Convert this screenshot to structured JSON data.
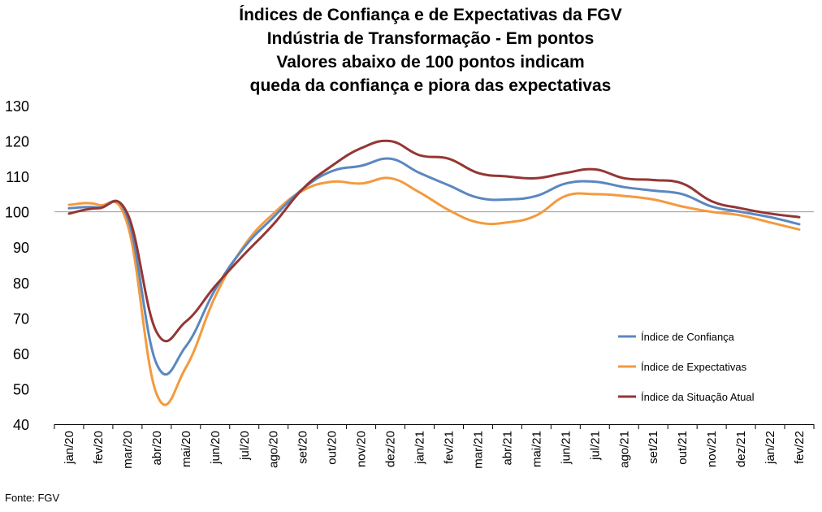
{
  "title": [
    "Índices de Confiança e de Expectativas da FGV",
    "Indústria de Transformação - Em pontos",
    "Valores abaixo de 100 pontos indicam",
    "queda da confiança e piora das expectativas"
  ],
  "source": "Fonte: FGV",
  "colors": {
    "confianca": "#5B87C0",
    "expectativas": "#F39A3E",
    "situacao": "#943634",
    "reference_line": "#9a9a9a",
    "axis": "#000000"
  },
  "chart_data": {
    "type": "line",
    "categories": [
      "jan/20",
      "fev/20",
      "mar/20",
      "abr/20",
      "mai/20",
      "jun/20",
      "jul/20",
      "ago/20",
      "set/20",
      "out/20",
      "nov/20",
      "dez/20",
      "jan/21",
      "fev/21",
      "mar/21",
      "abr/21",
      "mai/21",
      "jun/21",
      "jul/21",
      "ago/21",
      "set/21",
      "out/21",
      "nov/21",
      "dez/21",
      "jan/22",
      "fev/22"
    ],
    "ylim": [
      40,
      130
    ],
    "yticks": [
      40,
      50,
      60,
      70,
      80,
      90,
      100,
      110,
      120,
      130
    ],
    "reference_y": 100,
    "grid": false,
    "legend_position": "right",
    "series": [
      {
        "name": "Índice de Confiança",
        "color_key": "confianca",
        "values": [
          101,
          101.2,
          98.5,
          57,
          62,
          78,
          90,
          98.5,
          106.5,
          111.5,
          113,
          115,
          111,
          107.5,
          104,
          103.5,
          104.5,
          108,
          108.5,
          107,
          106,
          105,
          101.5,
          100,
          98.5,
          96.5
        ]
      },
      {
        "name": "Índice de Expectativas",
        "color_key": "expectativas",
        "values": [
          102,
          102,
          96.5,
          48.5,
          56,
          76,
          90.5,
          99.5,
          106,
          108.5,
          108,
          109.5,
          105.5,
          100.5,
          97,
          97,
          99,
          104.5,
          105,
          104.5,
          103.5,
          101.5,
          100,
          99,
          97,
          95
        ]
      },
      {
        "name": "Índice da Situação Atual",
        "color_key": "situacao",
        "values": [
          99.5,
          101,
          99.5,
          66,
          69,
          79,
          88,
          96.5,
          106.5,
          113,
          118,
          120,
          116,
          115,
          111,
          110,
          109.5,
          111,
          112,
          109.5,
          109,
          108,
          103,
          101,
          99.5,
          98.5
        ]
      }
    ]
  }
}
